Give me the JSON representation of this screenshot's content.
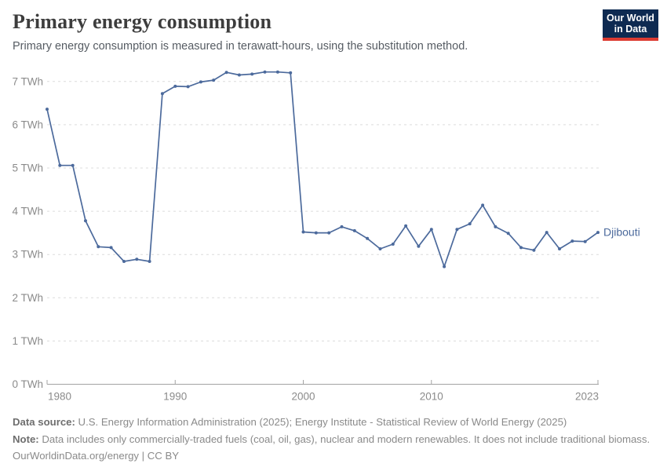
{
  "header": {
    "title": "Primary energy consumption",
    "subtitle": "Primary energy consumption is measured in terawatt-hours, using the substitution method."
  },
  "logo": {
    "line1": "Our World",
    "line2": "in Data"
  },
  "chart_data": {
    "type": "line",
    "title": "Primary energy consumption",
    "unit": "TWh",
    "entity_label": "Djibouti",
    "x": [
      1980,
      1981,
      1982,
      1983,
      1984,
      1985,
      1986,
      1987,
      1988,
      1989,
      1990,
      1991,
      1992,
      1993,
      1994,
      1995,
      1996,
      1997,
      1998,
      1999,
      2000,
      2001,
      2002,
      2003,
      2004,
      2005,
      2006,
      2007,
      2008,
      2009,
      2010,
      2011,
      2012,
      2013,
      2014,
      2015,
      2016,
      2017,
      2018,
      2019,
      2020,
      2021,
      2022,
      2023
    ],
    "series": [
      {
        "name": "Djibouti",
        "color": "#4c6a9c",
        "values": [
          6.36,
          5.06,
          5.06,
          3.78,
          3.18,
          3.16,
          2.84,
          2.89,
          2.84,
          6.72,
          6.89,
          6.88,
          6.99,
          7.03,
          7.21,
          7.15,
          7.17,
          7.22,
          7.22,
          7.2,
          3.52,
          3.5,
          3.5,
          3.64,
          3.55,
          3.37,
          3.13,
          3.24,
          3.66,
          3.19,
          3.58,
          2.72,
          3.58,
          3.71,
          4.14,
          3.64,
          3.49,
          3.16,
          3.1,
          3.51,
          3.13,
          3.31,
          3.3,
          3.51
        ]
      }
    ],
    "xlim": [
      1980,
      2023
    ],
    "ylim": [
      0,
      7
    ],
    "y_ticks": [
      0,
      1,
      2,
      3,
      4,
      5,
      6,
      7
    ],
    "y_tick_suffix": " TWh",
    "x_ticks": [
      1980,
      1990,
      2000,
      2010,
      2023
    ],
    "grid": "horizontal-dashed",
    "legend_position": "end-of-line-label",
    "colors": {
      "line": "#4c6a9c",
      "gridline": "#dcdcdc",
      "axis": "#a3a3a3",
      "tick_label": "#8b8b8b"
    }
  },
  "footer": {
    "source_label": "Data source:",
    "source_text": " U.S. Energy Information Administration (2025); Energy Institute - Statistical Review of World Energy (2025)",
    "note_label": "Note:",
    "note_text": " Data includes only commercially-traded fuels (coal, oil, gas), nuclear and modern renewables. It does not include traditional biomass.",
    "origin_url": "OurWorldinData.org/energy",
    "divider": " | ",
    "license": "CC BY"
  }
}
